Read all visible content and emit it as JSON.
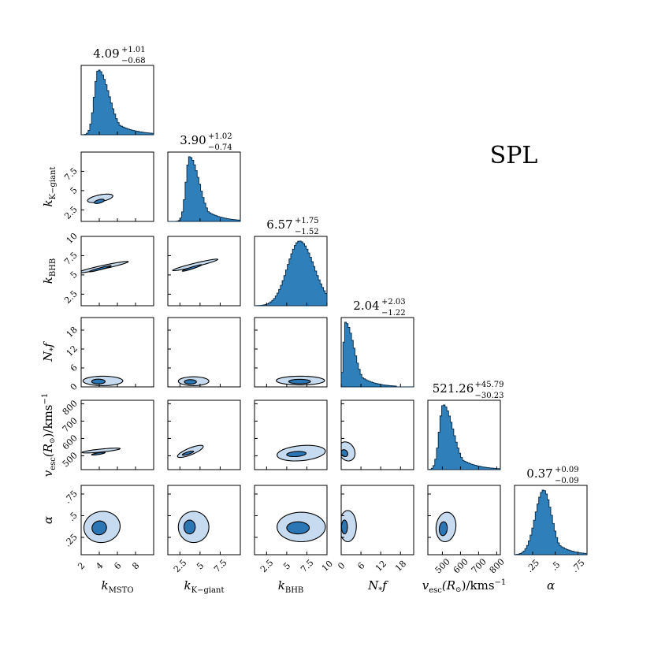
{
  "figure_label": "SPL",
  "chart_data": {
    "type": "corner",
    "title": "SPL",
    "params": [
      {
        "id": "kmsto",
        "label": "k",
        "label_sub": "MSTO",
        "label_kind": "ksub",
        "median": "4.09",
        "plus": "+1.01",
        "minus": "−0.68",
        "mode": 3.9,
        "sig_lo": 0.45,
        "sig_hi": 1.2,
        "range": [
          2,
          10
        ],
        "ticks": [
          2,
          4,
          6,
          8
        ],
        "tick_labels": [
          "2",
          "4",
          "6",
          "8"
        ]
      },
      {
        "id": "kkgiant",
        "label": "k",
        "label_sub": "K−giant",
        "label_kind": "ksub",
        "median": "3.90",
        "plus": "+1.02",
        "minus": "−0.74",
        "mode": 3.7,
        "sig_lo": 0.45,
        "sig_hi": 1.2,
        "range": [
          1,
          10
        ],
        "ticks": [
          2.5,
          5,
          7.5
        ],
        "tick_labels": [
          "2.5",
          "5",
          "7.5"
        ]
      },
      {
        "id": "kbhb",
        "label": "k",
        "label_sub": "BHB",
        "label_kind": "ksub",
        "median": "6.57",
        "plus": "+1.75",
        "minus": "−1.52",
        "mode": 6.6,
        "sig_lo": 1.5,
        "sig_hi": 1.8,
        "range": [
          1,
          10
        ],
        "ticks": [
          2.5,
          5,
          7.5,
          10
        ],
        "tick_labels": [
          "2.5",
          "5",
          "7.5",
          "10"
        ]
      },
      {
        "id": "nf",
        "label": "N",
        "label_sub": "*",
        "label_kind": "nf",
        "median": "2.04",
        "plus": "+2.03",
        "minus": "−1.22",
        "mode": 1.3,
        "sig_lo": 0.6,
        "sig_hi": 2.6,
        "range": [
          0,
          22
        ],
        "ticks": [
          0,
          6,
          12,
          18
        ],
        "tick_labels": [
          "0",
          "6",
          "12",
          "18"
        ]
      },
      {
        "id": "vesc",
        "label": "v",
        "label_sub": "esc",
        "label_kind": "vesc",
        "median": "521.26",
        "plus": "+45.79",
        "minus": "−30.23",
        "mode": 505,
        "sig_lo": 22,
        "sig_hi": 55,
        "range": [
          420,
          820
        ],
        "ticks": [
          500,
          600,
          700,
          800
        ],
        "tick_labels": [
          "500",
          "600",
          "700",
          "800"
        ]
      },
      {
        "id": "alpha",
        "label": "α",
        "label_sub": "",
        "label_kind": "alpha",
        "median": "0.37",
        "plus": "+0.09",
        "minus": "−0.09",
        "mode": 0.37,
        "sig_lo": 0.09,
        "sig_hi": 0.09,
        "range": [
          0.05,
          0.85
        ],
        "ticks": [
          0.25,
          0.5,
          0.75
        ],
        "tick_labels": [
          ".25",
          ".5",
          ".75"
        ]
      }
    ],
    "pairs": [
      {
        "x": "kmsto",
        "y": "kkgiant",
        "outer": [
          4.1,
          4.0,
          1.4,
          0.55,
          0.55
        ],
        "inner": [
          4.0,
          3.6,
          0.55,
          0.28,
          0.55
        ]
      },
      {
        "x": "kmsto",
        "y": "kbhb",
        "outer": [
          4.4,
          6.0,
          2.8,
          0.75,
          1.25
        ],
        "inner": [
          4.1,
          5.8,
          1.2,
          0.4,
          1.3
        ]
      },
      {
        "x": "kkgiant",
        "y": "kbhb",
        "outer": [
          4.4,
          6.3,
          2.8,
          0.75,
          1.2
        ],
        "inner": [
          4.0,
          5.9,
          1.2,
          0.42,
          1.25
        ]
      },
      {
        "x": "kmsto",
        "y": "nf",
        "outer": [
          4.4,
          1.9,
          2.2,
          1.5,
          0.0
        ],
        "inner": [
          3.9,
          1.7,
          0.75,
          0.75,
          0.0
        ]
      },
      {
        "x": "kkgiant",
        "y": "nf",
        "outer": [
          4.2,
          1.8,
          1.9,
          1.4,
          0.0
        ],
        "inner": [
          3.8,
          1.6,
          0.75,
          0.7,
          0.0
        ]
      },
      {
        "x": "kbhb",
        "y": "nf",
        "outer": [
          6.7,
          2.0,
          3.0,
          1.4,
          0.0
        ],
        "inner": [
          6.6,
          1.7,
          1.35,
          0.7,
          0.0
        ]
      },
      {
        "x": "kmsto",
        "y": "vesc",
        "outer": [
          4.2,
          530,
          2.1,
          14,
          0.78
        ],
        "inner": [
          3.9,
          512,
          0.75,
          8,
          0.78
        ]
      },
      {
        "x": "kkgiant",
        "y": "vesc",
        "outer": [
          3.8,
          525,
          1.6,
          35,
          0.8
        ],
        "inner": [
          3.5,
          515,
          0.7,
          12,
          0.8
        ]
      },
      {
        "x": "kbhb",
        "y": "vesc",
        "outer": [
          6.8,
          515,
          3.0,
          45,
          0.25
        ],
        "inner": [
          6.2,
          510,
          1.2,
          15,
          0.25
        ]
      },
      {
        "x": "nf",
        "y": "vesc",
        "outer": [
          1.7,
          525,
          2.5,
          55,
          -0.2
        ],
        "inner": [
          1.0,
          515,
          1.0,
          20,
          -0.2
        ]
      },
      {
        "x": "vesc",
        "y": "vesc",
        "outer": [
          0,
          0,
          0,
          0,
          0
        ],
        "inner": [
          0,
          0,
          0,
          0,
          0
        ],
        "skip": true
      },
      {
        "x": "kmsto",
        "y": "alpha",
        "outer": [
          4.3,
          0.37,
          2.0,
          0.18,
          0.05
        ],
        "inner": [
          4.0,
          0.36,
          0.8,
          0.08,
          0.05
        ]
      },
      {
        "x": "kkgiant",
        "y": "alpha",
        "outer": [
          4.2,
          0.37,
          1.9,
          0.18,
          0.0
        ],
        "inner": [
          3.7,
          0.37,
          0.7,
          0.08,
          0.0
        ]
      },
      {
        "x": "kbhb",
        "y": "alpha",
        "outer": [
          6.8,
          0.37,
          3.0,
          0.17,
          0.0
        ],
        "inner": [
          6.4,
          0.36,
          1.4,
          0.07,
          0.0
        ]
      },
      {
        "x": "nf",
        "y": "alpha",
        "outer": [
          2.0,
          0.38,
          2.6,
          0.18,
          0.0
        ],
        "inner": [
          1.0,
          0.37,
          0.9,
          0.08,
          0.0
        ]
      },
      {
        "x": "vesc",
        "y": "alpha",
        "outer": [
          520,
          0.37,
          55,
          0.17,
          0.1
        ],
        "inner": [
          505,
          0.35,
          22,
          0.08,
          0.1
        ]
      }
    ],
    "axis_unit_vesc": "kms",
    "colors": {
      "hist": "#2e7fba",
      "outer_fill": "#c6dbef",
      "inner_fill": "#2b77b5",
      "stroke": "#000000"
    }
  }
}
